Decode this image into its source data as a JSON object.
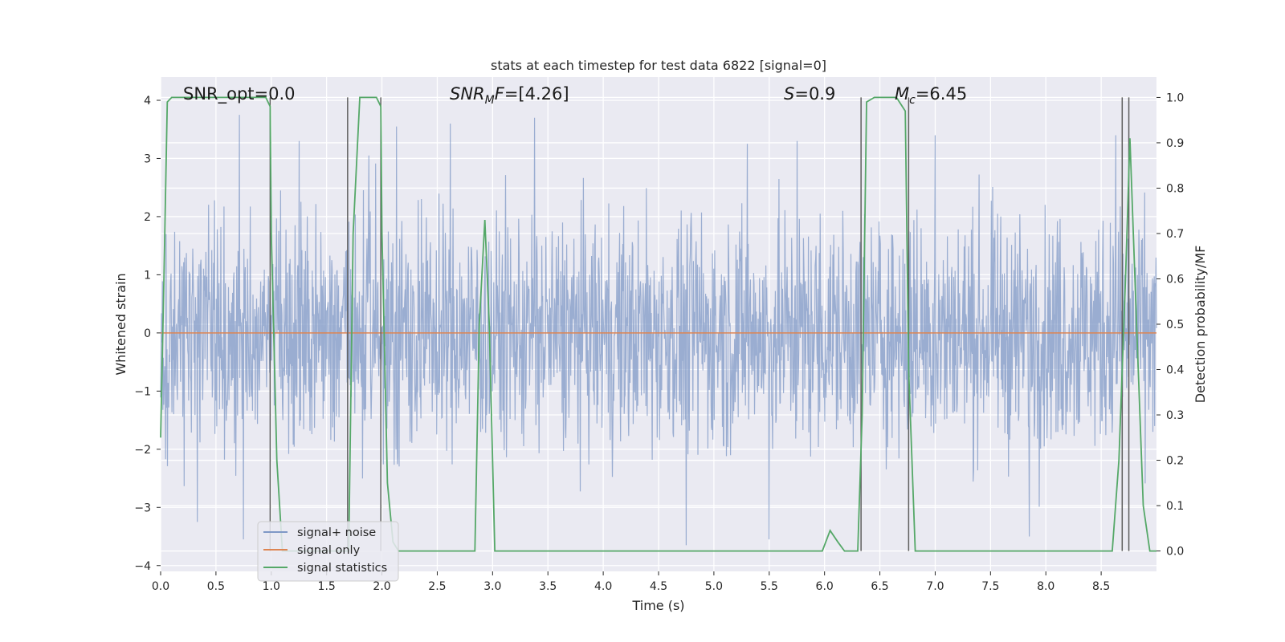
{
  "chart_data": {
    "type": "line",
    "title": "stats at each timestep for test data 6822 [signal=0]",
    "xlabel": "Time (s)",
    "ylabel": "Whitened strain",
    "y2label": "Detection probability/MF",
    "xlim": [
      0,
      9.0
    ],
    "ylim": [
      -4.1,
      4.4
    ],
    "y2lim": [
      -0.045,
      1.045
    ],
    "xticks": [
      0.0,
      0.5,
      1.0,
      1.5,
      2.0,
      2.5,
      3.0,
      3.5,
      4.0,
      4.5,
      5.0,
      5.5,
      6.0,
      6.5,
      7.0,
      7.5,
      8.0,
      8.5
    ],
    "xtick_labels": [
      "0.0",
      "0.5",
      "1.0",
      "1.5",
      "2.0",
      "2.5",
      "3.0",
      "3.5",
      "4.0",
      "4.5",
      "5.0",
      "5.5",
      "6.0",
      "6.5",
      "7.0",
      "7.5",
      "8.0",
      "8.5"
    ],
    "yticks": [
      -4,
      -3,
      -2,
      -1,
      0,
      1,
      2,
      3,
      4
    ],
    "ytick_labels": [
      "−4",
      "−3",
      "−2",
      "−1",
      "0",
      "1",
      "2",
      "3",
      "4"
    ],
    "y2ticks": [
      0.0,
      0.1,
      0.2,
      0.3,
      0.4,
      0.5,
      0.6,
      0.7,
      0.8,
      0.9,
      1.0
    ],
    "y2tick_labels": [
      "0.0",
      "0.1",
      "0.2",
      "0.3",
      "0.4",
      "0.5",
      "0.6",
      "0.7",
      "0.8",
      "0.9",
      "1.0"
    ],
    "grid": true,
    "legend_position": "lower-left",
    "annotations": [
      {
        "text": "SNR_opt=0.0",
        "x": 0.19
      },
      {
        "text": "SNR_MF=[4.26]",
        "x": 2.6
      },
      {
        "text": "S=0.9",
        "x": 5.6
      },
      {
        "text": "M_c=6.45",
        "x": 6.6
      }
    ],
    "series": [
      {
        "name": "signal+ noise",
        "color": "#7f98c6",
        "axis": "left",
        "kind": "noise",
        "x_range": [
          0,
          9.0
        ],
        "approx_spread": [
          -3.7,
          3.8
        ],
        "notable_peaks": [
          {
            "x": 0.33,
            "y": 3.45
          },
          {
            "x": 0.71,
            "y": 3.75
          },
          {
            "x": 1.25,
            "y": 3.3
          },
          {
            "x": 1.88,
            "y": 3.05
          },
          {
            "x": 2.13,
            "y": 3.55
          },
          {
            "x": 2.62,
            "y": 3.6
          },
          {
            "x": 3.38,
            "y": 3.7
          },
          {
            "x": 5.3,
            "y": 3.25
          },
          {
            "x": 5.75,
            "y": 3.3
          },
          {
            "x": 7.0,
            "y": 3.4
          },
          {
            "x": 8.63,
            "y": 3.4
          }
        ],
        "notable_troughs": [
          {
            "x": 0.33,
            "y": -3.25
          },
          {
            "x": 0.75,
            "y": -3.55
          },
          {
            "x": 4.75,
            "y": -3.65
          },
          {
            "x": 5.5,
            "y": -3.55
          },
          {
            "x": 7.85,
            "y": -3.5
          }
        ]
      },
      {
        "name": "signal only",
        "color": "#dd8452",
        "axis": "left",
        "x": [
          0.0,
          9.0
        ],
        "y": [
          0.0,
          0.0
        ]
      },
      {
        "name": "signal statistics",
        "color": "#55a868",
        "axis": "right",
        "x": [
          0.0,
          0.03,
          0.06,
          0.1,
          0.15,
          0.3,
          0.5,
          0.7,
          0.95,
          0.99,
          1.0,
          1.05,
          1.1,
          1.2,
          1.5,
          1.7,
          1.74,
          1.8,
          1.95,
          1.99,
          2.0,
          2.05,
          2.1,
          2.15,
          2.3,
          2.5,
          2.7,
          2.84,
          2.88,
          2.93,
          2.97,
          3.02,
          3.06,
          3.1,
          3.5,
          4.0,
          4.5,
          5.0,
          5.5,
          5.98,
          6.05,
          6.12,
          6.18,
          6.25,
          6.3,
          6.34,
          6.38,
          6.45,
          6.55,
          6.65,
          6.73,
          6.76,
          6.82,
          6.88,
          7.0,
          7.5,
          8.0,
          8.3,
          8.6,
          8.66,
          8.72,
          8.76,
          8.82,
          8.88,
          8.94,
          9.0
        ],
        "y": [
          0.25,
          0.6,
          0.99,
          1.0,
          1.0,
          1.0,
          1.0,
          1.0,
          1.0,
          0.98,
          0.7,
          0.2,
          0.0,
          0.0,
          0.0,
          0.0,
          0.7,
          1.0,
          1.0,
          0.98,
          0.7,
          0.15,
          0.02,
          0.0,
          0.0,
          0.0,
          0.0,
          0.0,
          0.5,
          0.73,
          0.5,
          0.0,
          0.0,
          0.0,
          0.0,
          0.0,
          0.0,
          0.0,
          0.0,
          0.0,
          0.045,
          0.02,
          0.0,
          0.0,
          0.0,
          0.3,
          0.99,
          1.0,
          1.0,
          1.0,
          0.97,
          0.4,
          0.0,
          0.0,
          0.0,
          0.0,
          0.0,
          0.0,
          0.0,
          0.2,
          0.6,
          0.91,
          0.5,
          0.1,
          0.0,
          0.0
        ]
      }
    ],
    "vertical_markers": {
      "color": "#5f5f5f",
      "axis": "right",
      "y_range": [
        0.0,
        1.0
      ],
      "x": [
        0.99,
        1.69,
        1.99,
        6.33,
        6.76,
        8.69,
        8.75
      ]
    }
  }
}
